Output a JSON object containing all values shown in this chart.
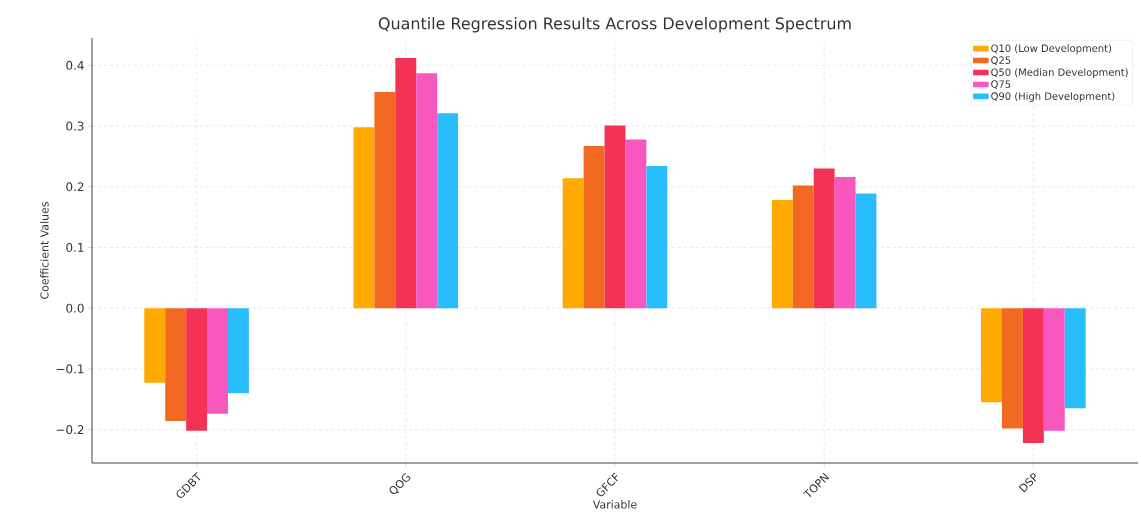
{
  "chart_data": {
    "type": "bar",
    "title": "Quantile Regression Results Across Development Spectrum",
    "xlabel": "Variable",
    "ylabel": "Coefficient Values",
    "categories": [
      "GDBT",
      "QOG",
      "GFCF",
      "TOPN",
      "DSP"
    ],
    "series": [
      {
        "name": "Q10 (Low Development)",
        "color": "#ffaa00",
        "values": [
          -0.123,
          0.298,
          0.214,
          0.178,
          -0.155
        ]
      },
      {
        "name": "Q25",
        "color": "#f26922",
        "values": [
          -0.186,
          0.356,
          0.267,
          0.202,
          -0.198
        ]
      },
      {
        "name": "Q50 (Median Development)",
        "color": "#f43256",
        "values": [
          -0.202,
          0.412,
          0.301,
          0.23,
          -0.222
        ]
      },
      {
        "name": "Q75",
        "color": "#f857be",
        "values": [
          -0.174,
          0.387,
          0.278,
          0.216,
          -0.202
        ]
      },
      {
        "name": "Q90 (High Development)",
        "color": "#29bdfc",
        "values": [
          -0.14,
          0.321,
          0.234,
          0.189,
          -0.165
        ]
      }
    ],
    "ylim": [
      -0.255,
      0.445
    ],
    "yticks": [
      {
        "value": -0.2,
        "label": "−0.2"
      },
      {
        "value": -0.1,
        "label": "−0.1"
      },
      {
        "value": 0,
        "label": "0.0"
      },
      0.1,
      0.2,
      0.3,
      0.4
    ],
    "grid": true,
    "legend": "top right"
  }
}
